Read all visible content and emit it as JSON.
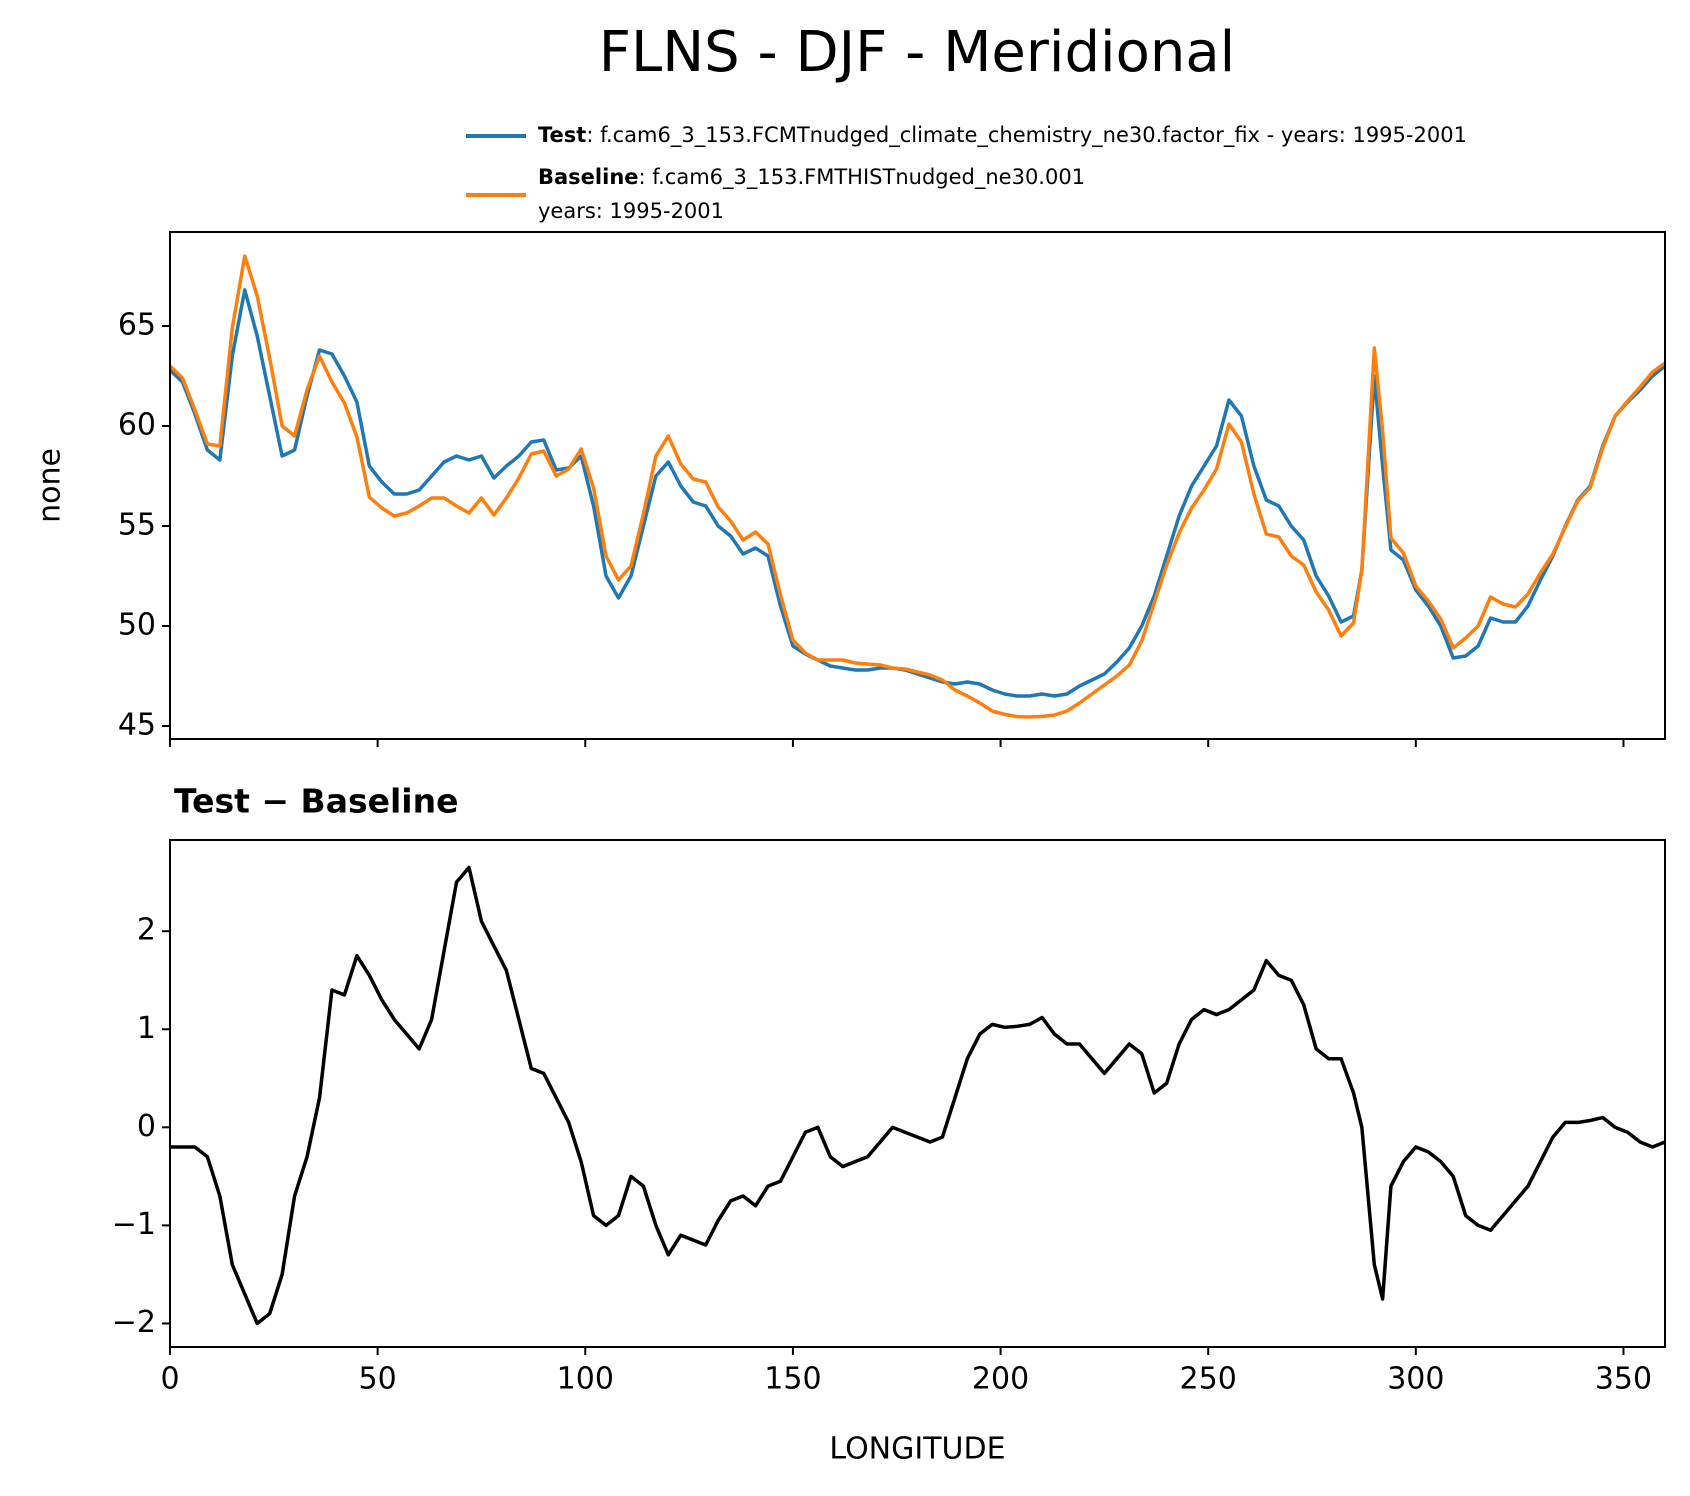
{
  "title": "FLNS - DJF - Meridional",
  "chart_data": [
    {
      "type": "line",
      "ylabel": "none",
      "xlim": [
        0,
        360
      ],
      "ylim": [
        44.35,
        69.7
      ],
      "xticks": [
        0,
        50,
        100,
        150,
        200,
        250,
        300,
        350
      ],
      "yticks": [
        45,
        50,
        55,
        60,
        65
      ],
      "legend": "upper right",
      "x": [
        0,
        3,
        6,
        9,
        12,
        15,
        18,
        21,
        24,
        27,
        30,
        33,
        36,
        39,
        42,
        45,
        48,
        51,
        54,
        57,
        60,
        63,
        66,
        69,
        72,
        75,
        78,
        81,
        84,
        87,
        90,
        93,
        96,
        99,
        102,
        105,
        108,
        111,
        114,
        117,
        120,
        123,
        126,
        129,
        132,
        135,
        138,
        141,
        144,
        147,
        150,
        153,
        156,
        159,
        162,
        165,
        168,
        171,
        174,
        177,
        180,
        183,
        186,
        189,
        192,
        195,
        198,
        201,
        204,
        207,
        210,
        213,
        216,
        219,
        222,
        225,
        228,
        231,
        234,
        237,
        240,
        243,
        246,
        249,
        252,
        255,
        258,
        261,
        264,
        267,
        270,
        273,
        276,
        279,
        282,
        285,
        287,
        290,
        292,
        294,
        297,
        300,
        303,
        306,
        309,
        312,
        315,
        318,
        321,
        324,
        327,
        330,
        333,
        336,
        339,
        342,
        345,
        348,
        351,
        354,
        357,
        360
      ],
      "series": [
        {
          "name": "Test",
          "description": [
            ": f.cam6_3_153.FCMTnudged_climate_chemistry_ne30.factor_fix - years: 1995-2001"
          ],
          "color": "#1f77b4",
          "values": [
            62.8,
            62.2,
            60.6,
            58.8,
            58.3,
            63.5,
            66.8,
            64.5,
            61.5,
            58.5,
            58.8,
            61.5,
            63.8,
            63.6,
            62.5,
            61.2,
            58,
            57.2,
            56.6,
            56.6,
            56.8,
            57.5,
            58.2,
            58.5,
            58.3,
            58.5,
            57.4,
            58,
            58.5,
            59.2,
            59.3,
            57.8,
            57.9,
            58.5,
            56,
            52.5,
            51.4,
            52.5,
            55,
            57.5,
            58.2,
            57,
            56.2,
            56,
            55,
            54.5,
            53.6,
            53.9,
            53.5,
            51,
            49,
            48.6,
            48.3,
            48,
            47.9,
            47.8,
            47.8,
            47.9,
            47.9,
            47.8,
            47.6,
            47.4,
            47.2,
            47.1,
            47.2,
            47.1,
            46.8,
            46.6,
            46.5,
            46.5,
            46.6,
            46.5,
            46.6,
            47,
            47.3,
            47.6,
            48.2,
            48.9,
            50,
            51.5,
            53.5,
            55.5,
            57,
            58,
            59,
            61.3,
            60.5,
            58,
            56.3,
            56,
            55,
            54.3,
            52.5,
            51.5,
            50.2,
            50.5,
            52.8,
            62.5,
            58,
            53.8,
            53.3,
            51.8,
            51,
            50,
            48.4,
            48.5,
            49,
            50.4,
            50.2,
            50.2,
            51,
            52.3,
            53.5,
            55,
            56.3,
            57,
            59,
            60.5,
            61.2,
            61.8,
            62.5,
            63
          ]
        },
        {
          "name": "Baseline",
          "description": [
            ": f.cam6_3_153.FMTHISTnudged_ne30.001",
            "years: 1995-2001"
          ],
          "color": "#ff7f0e",
          "values": [
            63,
            62.4,
            60.8,
            59.1,
            59,
            64.9,
            68.5,
            66.5,
            63.4,
            60,
            59.5,
            61.8,
            63.5,
            62.2,
            61.15,
            59.45,
            56.45,
            55.9,
            55.5,
            55.65,
            56,
            56.4,
            56.4,
            56,
            55.65,
            56.4,
            55.55,
            56.4,
            57.4,
            58.6,
            58.75,
            57.5,
            57.85,
            58.85,
            56.9,
            53.5,
            52.3,
            53,
            55.6,
            58.5,
            59.5,
            58.1,
            57.35,
            57.2,
            55.95,
            55.25,
            54.3,
            54.7,
            54.1,
            51.55,
            49.3,
            48.65,
            48.3,
            48.3,
            48.3,
            48.15,
            48.1,
            48.05,
            47.9,
            47.85,
            47.7,
            47.55,
            47.3,
            46.8,
            46.5,
            46.15,
            45.75,
            45.58,
            45.47,
            45.45,
            45.48,
            45.55,
            45.75,
            46.15,
            46.6,
            47.05,
            47.5,
            48.05,
            49.25,
            51.15,
            53.05,
            54.65,
            55.9,
            56.8,
            57.85,
            60.1,
            59.2,
            56.6,
            54.6,
            54.45,
            53.5,
            53.05,
            51.7,
            50.8,
            49.5,
            50.15,
            52.8,
            63.9,
            59.75,
            54.4,
            53.65,
            52,
            51.25,
            50.35,
            48.9,
            49.4,
            50,
            51.45,
            51.1,
            50.95,
            51.6,
            52.65,
            53.6,
            54.95,
            56.25,
            56.93,
            58.9,
            60.5,
            61.25,
            61.95,
            62.7,
            63.15
          ]
        }
      ]
    },
    {
      "type": "line",
      "title": "Test − Baseline",
      "xlabel": "LONGITUDE",
      "xlim": [
        0,
        360
      ],
      "ylim": [
        -2.24,
        2.93
      ],
      "xticks": [
        0,
        50,
        100,
        150,
        200,
        250,
        300,
        350
      ],
      "yticks": [
        {
          "value": -2,
          "label": "−2"
        },
        {
          "value": -1,
          "label": "−1"
        },
        0,
        1,
        2
      ],
      "x": [
        0,
        3,
        6,
        9,
        12,
        15,
        18,
        21,
        24,
        27,
        30,
        33,
        36,
        39,
        42,
        45,
        48,
        51,
        54,
        57,
        60,
        63,
        66,
        69,
        72,
        75,
        78,
        81,
        84,
        87,
        90,
        93,
        96,
        99,
        102,
        105,
        108,
        111,
        114,
        117,
        120,
        123,
        126,
        129,
        132,
        135,
        138,
        141,
        144,
        147,
        150,
        153,
        156,
        159,
        162,
        165,
        168,
        171,
        174,
        177,
        180,
        183,
        186,
        189,
        192,
        195,
        198,
        201,
        204,
        207,
        210,
        213,
        216,
        219,
        222,
        225,
        228,
        231,
        234,
        237,
        240,
        243,
        246,
        249,
        252,
        255,
        258,
        261,
        264,
        267,
        270,
        273,
        276,
        279,
        282,
        285,
        287,
        290,
        292,
        294,
        297,
        300,
        303,
        306,
        309,
        312,
        315,
        318,
        321,
        324,
        327,
        330,
        333,
        336,
        339,
        342,
        345,
        348,
        351,
        354,
        357,
        360
      ],
      "series": [
        {
          "color": "#000000",
          "values": [
            -0.2,
            -0.2,
            -0.2,
            -0.3,
            -0.7,
            -1.4,
            -1.7,
            -2.0,
            -1.9,
            -1.5,
            -0.7,
            -0.3,
            0.3,
            1.4,
            1.35,
            1.75,
            1.55,
            1.3,
            1.1,
            0.95,
            0.8,
            1.1,
            1.8,
            2.5,
            2.65,
            2.1,
            1.85,
            1.6,
            1.1,
            0.6,
            0.55,
            0.3,
            0.05,
            -0.35,
            -0.9,
            -1.0,
            -0.9,
            -0.5,
            -0.6,
            -1.0,
            -1.3,
            -1.1,
            -1.15,
            -1.2,
            -0.95,
            -0.75,
            -0.7,
            -0.8,
            -0.6,
            -0.55,
            -0.3,
            -0.05,
            0.0,
            -0.3,
            -0.4,
            -0.35,
            -0.3,
            -0.15,
            0.0,
            -0.05,
            -0.1,
            -0.15,
            -0.1,
            0.3,
            0.7,
            0.95,
            1.05,
            1.02,
            1.03,
            1.05,
            1.12,
            0.95,
            0.85,
            0.85,
            0.7,
            0.55,
            0.7,
            0.85,
            0.75,
            0.35,
            0.45,
            0.85,
            1.1,
            1.2,
            1.15,
            1.2,
            1.3,
            1.4,
            1.7,
            1.55,
            1.5,
            1.25,
            0.8,
            0.7,
            0.7,
            0.35,
            0.0,
            -1.4,
            -1.75,
            -0.6,
            -0.35,
            -0.2,
            -0.25,
            -0.35,
            -0.5,
            -0.9,
            -1.0,
            -1.05,
            -0.9,
            -0.75,
            -0.6,
            -0.35,
            -0.1,
            0.05,
            0.05,
            0.07,
            0.1,
            0.0,
            -0.05,
            -0.15,
            -0.2,
            -0.15
          ]
        }
      ]
    }
  ]
}
